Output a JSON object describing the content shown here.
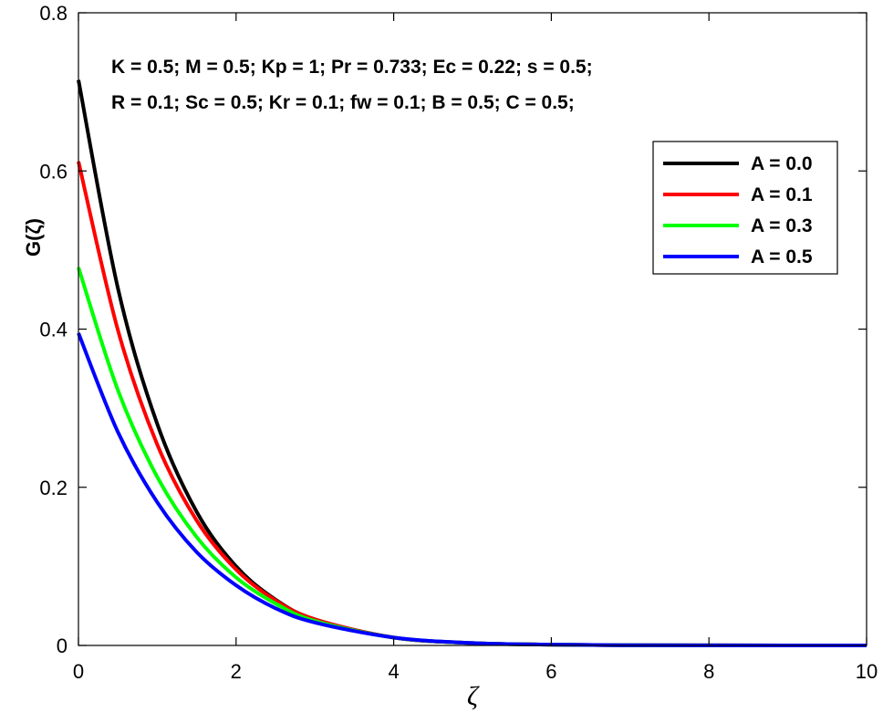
{
  "chart_data": {
    "type": "line",
    "xlabel": "ζ",
    "ylabel": "G(ζ)",
    "xlim": [
      0,
      10
    ],
    "ylim": [
      0,
      0.8
    ],
    "xticks": [
      0,
      2,
      4,
      6,
      8,
      10
    ],
    "yticks": [
      0,
      0.2,
      0.4,
      0.6,
      0.8
    ],
    "xtick_labels": [
      "0",
      "2",
      "4",
      "6",
      "8",
      "10"
    ],
    "ytick_labels": [
      "0",
      "0.2",
      "0.4",
      "0.6",
      "0.8"
    ],
    "grid": false,
    "legend_position": "top-right",
    "annotations": [
      "K = 0.5; M = 0.5; Kp = 1; Pr = 0.733; Ec = 0.22; s = 0.5;",
      "R = 0.1;  Sc = 0.5; Kr = 0.1; fw = 0.1;  B = 0.5; C = 0.5;"
    ],
    "x": [
      0,
      0.5,
      1,
      1.5,
      2,
      2.5,
      3,
      4,
      5,
      6,
      7,
      8,
      9,
      10
    ],
    "series": [
      {
        "name": "A = 0.0",
        "color": "#000000",
        "values": [
          0.715,
          0.452,
          0.28,
          0.169,
          0.1,
          0.058,
          0.033,
          0.01,
          0.003,
          0.001,
          0.0003,
          0.0001,
          0.0,
          0.0
        ]
      },
      {
        "name": "A = 0.1",
        "color": "#ff0000",
        "values": [
          0.612,
          0.399,
          0.254,
          0.158,
          0.096,
          0.057,
          0.033,
          0.01,
          0.003,
          0.001,
          0.0003,
          0.0001,
          0.0,
          0.0
        ]
      },
      {
        "name": "A = 0.3",
        "color": "#00ff00",
        "values": [
          0.478,
          0.323,
          0.213,
          0.137,
          0.086,
          0.053,
          0.031,
          0.01,
          0.003,
          0.001,
          0.0003,
          0.0001,
          0.0,
          0.0
        ]
      },
      {
        "name": "A = 0.5",
        "color": "#0000ff",
        "values": [
          0.395,
          0.27,
          0.181,
          0.118,
          0.076,
          0.047,
          0.029,
          0.01,
          0.003,
          0.001,
          0.0003,
          0.0001,
          0.0,
          0.0
        ]
      }
    ]
  }
}
